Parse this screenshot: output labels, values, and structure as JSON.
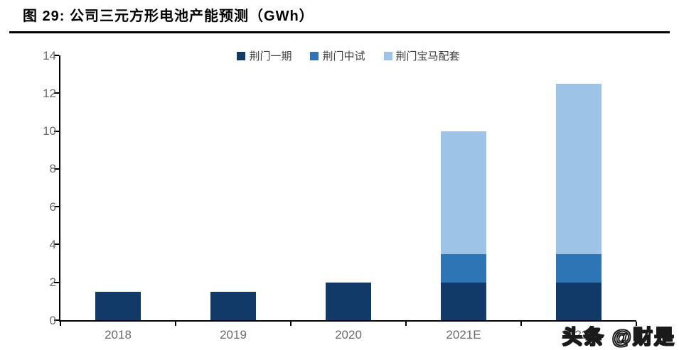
{
  "header": {
    "title": "图 29: 公司三元方形电池产能预测（GWh）"
  },
  "watermark": {
    "text": "头条 @财是"
  },
  "colors": {
    "series_dark": "#123A68",
    "series_medium": "#2E75B6",
    "series_light": "#9DC3E6",
    "axis": "#000000",
    "tick_label": "#6b6b6b",
    "legend_label": "#404040"
  },
  "chart_data": {
    "type": "bar",
    "stacked": true,
    "title": "公司三元方形电池产能预测（GWh）",
    "categories": [
      "2018",
      "2019",
      "2020",
      "2021E",
      "2022E"
    ],
    "series": [
      {
        "name": "荆门一期",
        "color": "#123A68",
        "values": [
          1.5,
          1.5,
          2,
          2,
          2
        ]
      },
      {
        "name": "荆门中试",
        "color": "#2E75B6",
        "values": [
          0,
          0,
          0,
          1.5,
          1.5
        ]
      },
      {
        "name": "荆门宝马配套",
        "color": "#9DC3E6",
        "values": [
          0,
          0,
          0,
          6.5,
          9
        ]
      }
    ],
    "stack_totals": [
      1.5,
      1.5,
      2,
      10,
      12.5
    ],
    "xlabel": "",
    "ylabel": "",
    "ylim": [
      0,
      14
    ],
    "yticks": [
      0,
      2,
      4,
      6,
      8,
      10,
      12,
      14
    ],
    "grid": false,
    "legend_position": "top"
  }
}
